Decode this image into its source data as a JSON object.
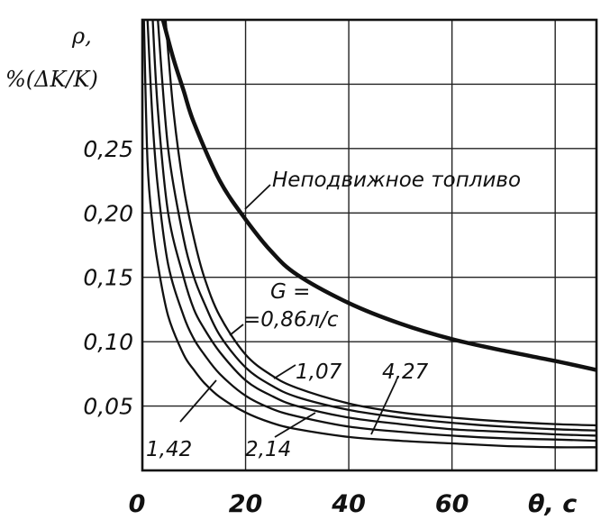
{
  "chart_data": {
    "type": "line",
    "ylabel_symbol": "ρ,",
    "ylabel_unit": "%(ΔK/K)",
    "xlabel": "θ, c",
    "xlim": [
      0,
      88
    ],
    "ylim": [
      0,
      0.35
    ],
    "grid": true,
    "x_ticks": [
      "0",
      "20",
      "40",
      "60"
    ],
    "y_ticks": [
      "0,05",
      "0,10",
      "0,15",
      "0,20",
      "0,25"
    ],
    "y_tick_values": [
      0.05,
      0.1,
      0.15,
      0.2,
      0.25
    ],
    "series": [
      {
        "name": "Неподвижное топливо",
        "x": [
          4,
          6,
          8,
          10,
          15,
          20,
          25,
          30,
          40,
          50,
          60,
          70,
          80,
          88
        ],
        "y": [
          0.35,
          0.32,
          0.295,
          0.27,
          0.225,
          0.195,
          0.17,
          0.152,
          0.13,
          0.114,
          0.102,
          0.093,
          0.085,
          0.078
        ]
      },
      {
        "name": "=0,86л/с",
        "x": [
          4.5,
          6,
          8,
          10,
          12,
          15,
          20,
          25,
          30,
          40,
          50,
          60,
          70,
          80,
          88
        ],
        "y": [
          0.35,
          0.28,
          0.22,
          0.18,
          0.15,
          0.12,
          0.09,
          0.074,
          0.064,
          0.052,
          0.045,
          0.041,
          0.038,
          0.036,
          0.035
        ]
      },
      {
        "name": "1,07",
        "x": [
          3,
          5,
          8,
          10,
          12,
          15,
          20,
          25,
          30,
          40,
          50,
          60,
          70,
          80,
          88
        ],
        "y": [
          0.35,
          0.25,
          0.18,
          0.15,
          0.13,
          0.105,
          0.08,
          0.066,
          0.057,
          0.047,
          0.041,
          0.037,
          0.034,
          0.032,
          0.031
        ]
      },
      {
        "name": "1,42",
        "x": [
          2,
          3,
          5,
          8,
          10,
          12,
          15,
          20,
          25,
          30,
          40,
          50,
          60,
          70,
          80,
          88
        ],
        "y": [
          0.35,
          0.28,
          0.2,
          0.15,
          0.125,
          0.11,
          0.092,
          0.07,
          0.058,
          0.05,
          0.041,
          0.036,
          0.032,
          0.03,
          0.028,
          0.027
        ]
      },
      {
        "name": "2,14",
        "x": [
          1,
          2,
          3,
          5,
          8,
          10,
          12,
          15,
          20,
          25,
          30,
          40,
          50,
          60,
          70,
          80,
          88
        ],
        "y": [
          0.35,
          0.27,
          0.22,
          0.16,
          0.12,
          0.102,
          0.09,
          0.075,
          0.058,
          0.048,
          0.042,
          0.034,
          0.03,
          0.027,
          0.025,
          0.024,
          0.023
        ]
      },
      {
        "name": "4,27",
        "x": [
          0.3,
          1,
          2,
          3,
          5,
          8,
          10,
          12,
          15,
          20,
          25,
          30,
          40,
          50,
          60,
          70,
          80,
          88
        ],
        "y": [
          0.35,
          0.24,
          0.19,
          0.16,
          0.12,
          0.09,
          0.078,
          0.068,
          0.057,
          0.045,
          0.037,
          0.032,
          0.026,
          0.023,
          0.021,
          0.019,
          0.018,
          0.018
        ]
      }
    ],
    "annotations": {
      "fixed_fuel": "Неподвижное топливо",
      "g_label": "G =",
      "g_first": "=0,86л/с",
      "g_107": "1,07",
      "g_142": "1,42",
      "g_214": "2,14",
      "g_427": "4,27"
    }
  }
}
